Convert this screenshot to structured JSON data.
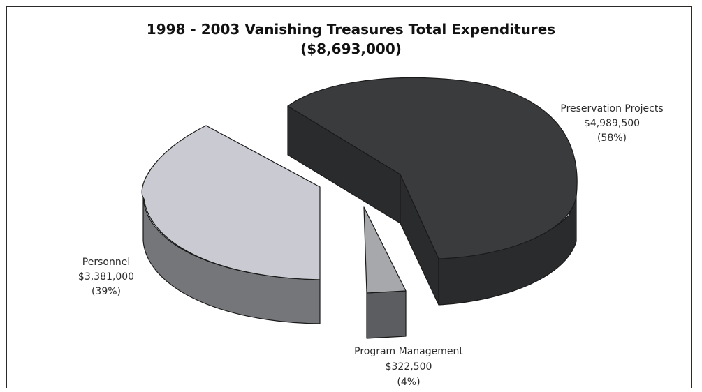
{
  "chart_data": {
    "type": "pie",
    "title": "1998 - 2003 Vanishing Treasures Total Expenditures",
    "subtitle": "($8,693,000)",
    "style": "3d-exploded",
    "slices": [
      {
        "name": "Preservation Projects",
        "value": 4989500,
        "value_label": "$4,989,500",
        "percent_label": "(58%)",
        "top_color": "#3a3b3d",
        "side_color": "#2a2b2d"
      },
      {
        "name": "Program Management",
        "value": 322500,
        "value_label": "$322,500",
        "percent_label": "(4%)",
        "top_color": "#a7a8ac",
        "side_color": "#5c5d61"
      },
      {
        "name": "Personnel",
        "value": 3381000,
        "value_label": "$3,381,000",
        "percent_label": "(39%)",
        "top_color": "#c9cad2",
        "side_color": "#75767a"
      }
    ]
  }
}
